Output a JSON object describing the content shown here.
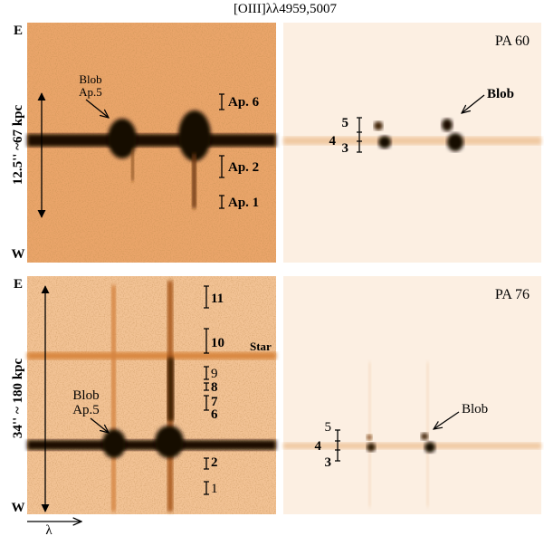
{
  "figure": {
    "title": "[OIII]λλ4959,5007",
    "wavelength_axis": "λ",
    "top_row": {
      "east": "E",
      "west": "W",
      "scale": "12.5'' ~67 kpc",
      "left_panel": {
        "blob_label": [
          "Blob",
          "Ap.5"
        ],
        "apertures": [
          "Ap. 6",
          "Ap. 2",
          "Ap. 1"
        ]
      },
      "right_panel": {
        "position_angle": "PA 60",
        "blob_label": "Blob",
        "apertures": [
          "5",
          "4",
          "3"
        ]
      }
    },
    "bottom_row": {
      "east": "E",
      "west": "W",
      "scale": "34'' ~ 180 kpc",
      "left_panel": {
        "blob_label": [
          "Blob",
          "Ap.5"
        ],
        "star_label": "Star",
        "apertures": [
          "11",
          "10",
          "9",
          "8",
          "7",
          "6",
          "2",
          "1"
        ]
      },
      "right_panel": {
        "position_angle": "PA 76",
        "blob_label": "Blob",
        "apertures": [
          "5",
          "4",
          "3"
        ]
      }
    }
  }
}
